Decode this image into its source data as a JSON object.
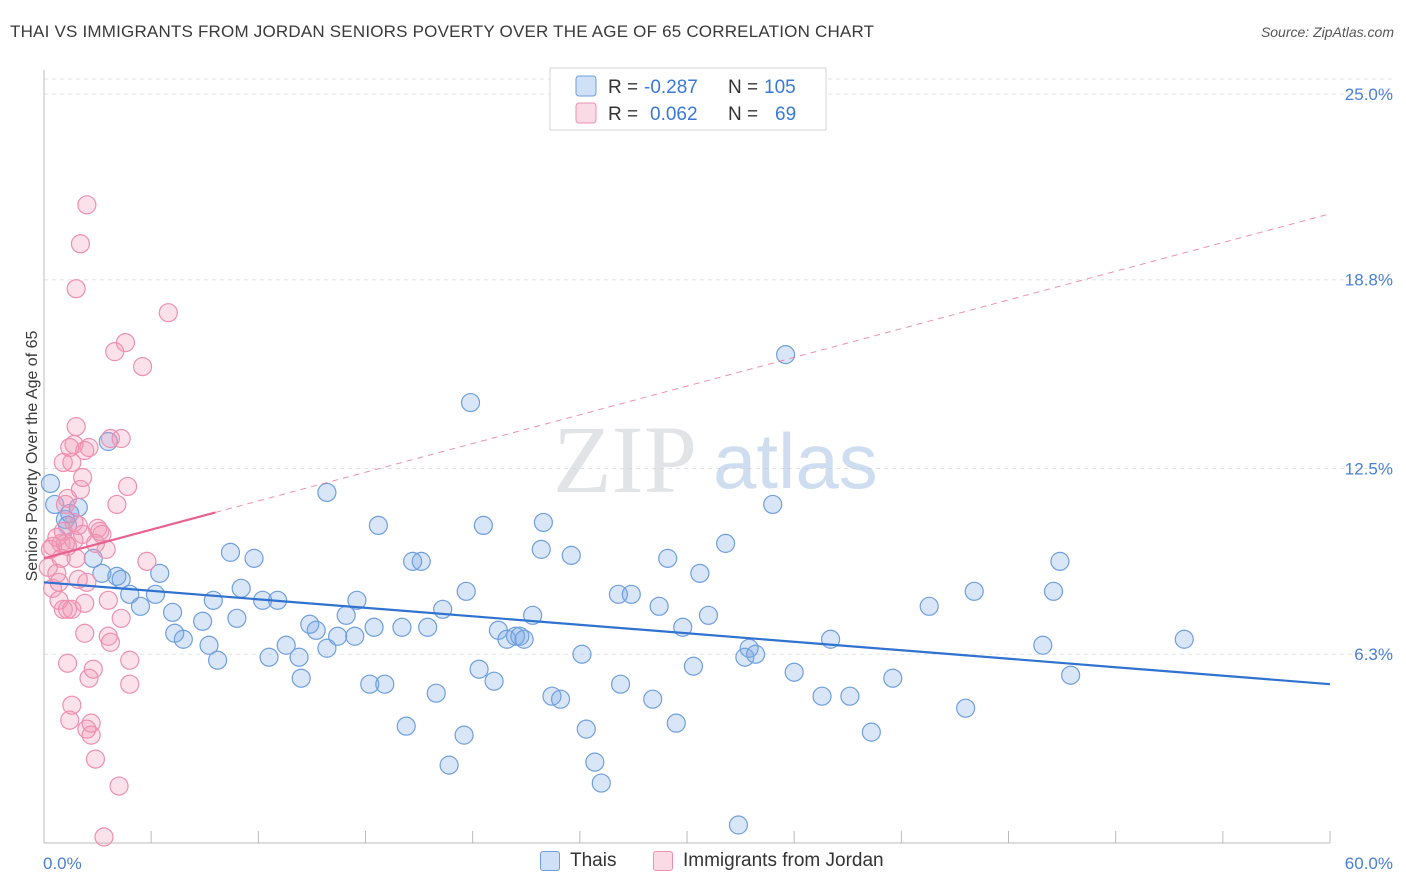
{
  "header": {
    "title": "THAI VS IMMIGRANTS FROM JORDAN SENIORS POVERTY OVER THE AGE OF 65 CORRELATION CHART",
    "source": "Source: ZipAtlas.com"
  },
  "watermark": {
    "zip": "ZIP",
    "atlas": "atlas"
  },
  "legend_box": {
    "rows": [
      {
        "r_label": "R =",
        "r_value": "-0.287",
        "n_label": "N =",
        "n_value": "105"
      },
      {
        "r_label": "R =",
        "r_value": "0.062",
        "n_label": "N =",
        "n_value": "69"
      }
    ]
  },
  "bottom_legend": {
    "series1": "Thais",
    "series2": "Immigrants from Jordan"
  },
  "colors": {
    "thai_fill": "rgba(120,165,230,0.28)",
    "thai_stroke": "#6f9fdd",
    "thai_line": "#2f72d0",
    "jordan_fill": "rgba(240,150,180,0.28)",
    "jordan_stroke": "#ee8fb0",
    "jordan_line": "#e8628f",
    "tick_text": "#4a7fd4"
  },
  "chart_data": {
    "type": "scatter",
    "title": "THAI VS IMMIGRANTS FROM JORDAN SENIORS POVERTY OVER THE AGE OF 65 CORRELATION CHART",
    "xlabel": "",
    "ylabel": "Seniors Poverty Over the Age of 65",
    "xlim": [
      0,
      60
    ],
    "ylim": [
      0,
      25.8
    ],
    "x_tick_labels": [
      "0.0%",
      "60.0%"
    ],
    "y_ticks": [
      6.3,
      12.5,
      18.8,
      25.0
    ],
    "y_tick_labels": [
      "6.3%",
      "12.5%",
      "18.8%",
      "25.0%"
    ],
    "grid": true,
    "legend_position": "top-center",
    "series": [
      {
        "name": "Thais",
        "R": -0.287,
        "N": 105,
        "trend": {
          "x0": 0,
          "y0": 8.7,
          "x1": 60,
          "y1": 5.3,
          "dashed_from": null
        },
        "points": [
          [
            0.3,
            12.0
          ],
          [
            0.5,
            11.3
          ],
          [
            1.0,
            10.8
          ],
          [
            1.2,
            11.0
          ],
          [
            1.6,
            11.2
          ],
          [
            1.1,
            10.6
          ],
          [
            3.0,
            13.4
          ],
          [
            2.3,
            9.5
          ],
          [
            2.7,
            9.0
          ],
          [
            3.4,
            8.9
          ],
          [
            3.6,
            8.8
          ],
          [
            4.0,
            8.3
          ],
          [
            4.5,
            7.9
          ],
          [
            5.2,
            8.3
          ],
          [
            5.4,
            9.0
          ],
          [
            6.0,
            7.7
          ],
          [
            6.1,
            7.0
          ],
          [
            6.5,
            6.8
          ],
          [
            7.4,
            7.4
          ],
          [
            7.9,
            8.1
          ],
          [
            7.7,
            6.6
          ],
          [
            8.1,
            6.1
          ],
          [
            8.7,
            9.7
          ],
          [
            9.0,
            7.5
          ],
          [
            9.2,
            8.5
          ],
          [
            9.8,
            9.5
          ],
          [
            10.2,
            8.1
          ],
          [
            10.5,
            6.2
          ],
          [
            10.9,
            8.1
          ],
          [
            11.3,
            6.6
          ],
          [
            11.9,
            6.2
          ],
          [
            12.0,
            5.5
          ],
          [
            12.4,
            7.3
          ],
          [
            12.7,
            7.1
          ],
          [
            13.2,
            11.7
          ],
          [
            13.2,
            6.5
          ],
          [
            13.7,
            6.9
          ],
          [
            14.1,
            7.6
          ],
          [
            14.5,
            6.9
          ],
          [
            14.6,
            8.1
          ],
          [
            15.2,
            5.3
          ],
          [
            15.4,
            7.2
          ],
          [
            15.6,
            10.6
          ],
          [
            15.9,
            5.3
          ],
          [
            16.7,
            7.2
          ],
          [
            16.9,
            3.9
          ],
          [
            17.2,
            9.4
          ],
          [
            17.6,
            9.4
          ],
          [
            17.9,
            7.2
          ],
          [
            18.3,
            5.0
          ],
          [
            18.6,
            7.8
          ],
          [
            18.9,
            2.6
          ],
          [
            19.6,
            3.6
          ],
          [
            19.9,
            14.7
          ],
          [
            19.7,
            8.4
          ],
          [
            20.3,
            5.8
          ],
          [
            20.5,
            10.6
          ],
          [
            21.0,
            5.4
          ],
          [
            21.2,
            7.1
          ],
          [
            21.6,
            6.8
          ],
          [
            22.0,
            6.9
          ],
          [
            22.2,
            6.9
          ],
          [
            22.8,
            7.6
          ],
          [
            23.2,
            9.8
          ],
          [
            23.3,
            10.7
          ],
          [
            23.7,
            4.9
          ],
          [
            24.1,
            4.8
          ],
          [
            24.6,
            9.6
          ],
          [
            25.1,
            6.3
          ],
          [
            25.3,
            3.8
          ],
          [
            25.7,
            2.7
          ],
          [
            26.0,
            2.0
          ],
          [
            26.8,
            8.3
          ],
          [
            26.9,
            5.3
          ],
          [
            27.4,
            8.3
          ],
          [
            28.4,
            4.8
          ],
          [
            28.7,
            7.9
          ],
          [
            29.1,
            9.5
          ],
          [
            29.5,
            4.0
          ],
          [
            29.8,
            7.2
          ],
          [
            30.3,
            5.9
          ],
          [
            30.6,
            9.0
          ],
          [
            31.0,
            7.6
          ],
          [
            31.8,
            10.0
          ],
          [
            32.4,
            0.6
          ],
          [
            32.7,
            6.2
          ],
          [
            32.9,
            6.5
          ],
          [
            33.2,
            6.3
          ],
          [
            34.0,
            11.3
          ],
          [
            34.6,
            16.3
          ],
          [
            35.0,
            5.7
          ],
          [
            36.3,
            4.9
          ],
          [
            36.7,
            6.8
          ],
          [
            37.6,
            4.9
          ],
          [
            38.6,
            3.7
          ],
          [
            39.6,
            5.5
          ],
          [
            41.3,
            7.9
          ],
          [
            43.0,
            4.5
          ],
          [
            43.4,
            8.4
          ],
          [
            46.6,
            6.6
          ],
          [
            47.9,
            5.6
          ],
          [
            47.1,
            8.4
          ],
          [
            47.4,
            9.4
          ],
          [
            53.2,
            6.8
          ],
          [
            22.4,
            6.8
          ]
        ]
      },
      {
        "name": "Immigrants from Jordan",
        "R": 0.062,
        "N": 69,
        "trend": {
          "x0": 0,
          "y0": 9.5,
          "x1": 60,
          "y1": 21.0,
          "solid_until_x": 8.0
        },
        "points": [
          [
            0.2,
            9.2
          ],
          [
            0.3,
            9.8
          ],
          [
            0.4,
            9.9
          ],
          [
            0.4,
            8.5
          ],
          [
            0.6,
            9.0
          ],
          [
            0.7,
            8.1
          ],
          [
            0.8,
            10.0
          ],
          [
            0.9,
            10.4
          ],
          [
            0.9,
            12.7
          ],
          [
            1.0,
            11.3
          ],
          [
            1.0,
            10.0
          ],
          [
            1.1,
            11.5
          ],
          [
            1.1,
            9.9
          ],
          [
            1.2,
            13.2
          ],
          [
            1.3,
            12.7
          ],
          [
            1.4,
            10.7
          ],
          [
            1.4,
            10.1
          ],
          [
            0.6,
            10.2
          ],
          [
            0.8,
            9.5
          ],
          [
            0.7,
            8.7
          ],
          [
            0.9,
            7.8
          ],
          [
            1.1,
            7.8
          ],
          [
            1.1,
            6.0
          ],
          [
            1.2,
            4.1
          ],
          [
            1.3,
            4.6
          ],
          [
            1.3,
            7.8
          ],
          [
            1.4,
            13.3
          ],
          [
            1.5,
            13.9
          ],
          [
            1.6,
            10.6
          ],
          [
            1.7,
            11.8
          ],
          [
            1.5,
            9.5
          ],
          [
            1.6,
            8.8
          ],
          [
            1.8,
            12.2
          ],
          [
            1.8,
            10.3
          ],
          [
            1.9,
            13.1
          ],
          [
            1.9,
            7.0
          ],
          [
            2.0,
            8.7
          ],
          [
            2.1,
            5.5
          ],
          [
            2.2,
            3.6
          ],
          [
            2.3,
            5.8
          ],
          [
            2.4,
            2.8
          ],
          [
            2.4,
            10.0
          ],
          [
            2.5,
            10.5
          ],
          [
            2.6,
            10.4
          ],
          [
            1.7,
            20.0
          ],
          [
            1.9,
            8.0
          ],
          [
            2.1,
            13.2
          ],
          [
            2.0,
            3.8
          ],
          [
            2.2,
            4.0
          ],
          [
            2.7,
            10.3
          ],
          [
            2.9,
            9.8
          ],
          [
            3.0,
            8.1
          ],
          [
            3.0,
            6.9
          ],
          [
            3.1,
            6.7
          ],
          [
            3.1,
            13.5
          ],
          [
            3.3,
            16.4
          ],
          [
            3.4,
            11.3
          ],
          [
            3.5,
            1.9
          ],
          [
            3.6,
            7.5
          ],
          [
            3.6,
            13.5
          ],
          [
            3.8,
            16.7
          ],
          [
            3.9,
            11.9
          ],
          [
            4.0,
            6.1
          ],
          [
            4.0,
            5.3
          ],
          [
            4.6,
            15.9
          ],
          [
            4.8,
            9.4
          ],
          [
            5.8,
            17.7
          ],
          [
            1.5,
            18.5
          ],
          [
            2.0,
            21.3
          ]
        ],
        "extra_points": [
          [
            2.8,
            0.2
          ]
        ]
      }
    ]
  }
}
